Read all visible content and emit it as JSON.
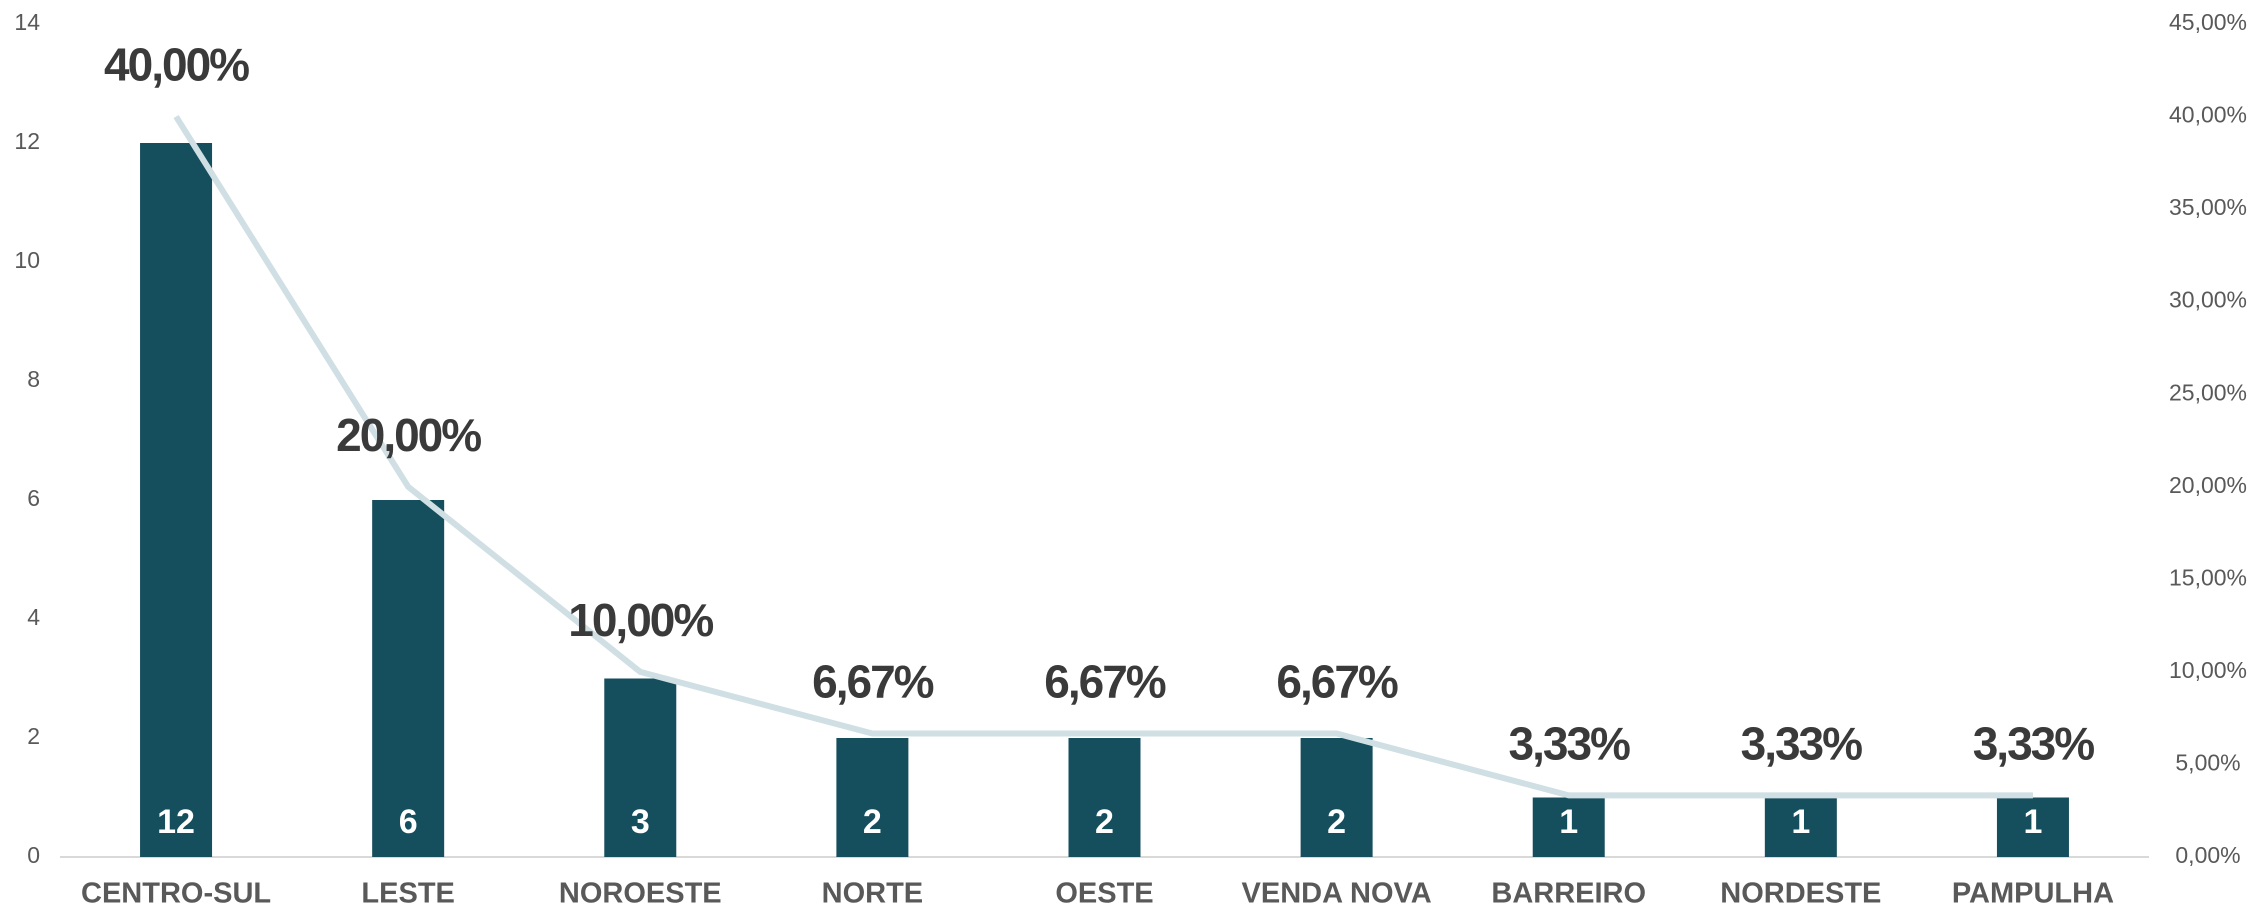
{
  "chart_data": {
    "type": "bar",
    "categories": [
      "CENTRO-SUL",
      "LESTE",
      "NOROESTE",
      "NORTE",
      "OESTE",
      "VENDA NOVA",
      "BARREIRO",
      "NORDESTE",
      "PAMPULHA"
    ],
    "series": [
      {
        "color": "#154e5c",
        "values": [
          12,
          6,
          3,
          2,
          2,
          2,
          1,
          1,
          1
        ]
      },
      {
        "type": "line",
        "axis": "y2",
        "color": "#cfdfe3",
        "values": [
          40,
          20,
          10,
          6.67,
          6.67,
          6.67,
          3.33,
          3.33,
          3.33
        ],
        "value_labels": [
          "40,00%",
          "20,00%",
          "10,00%",
          "6,67%",
          "6,67%",
          "6,67%",
          "3,33%",
          "3,33%",
          "3,33%"
        ]
      }
    ],
    "ylim": [
      0,
      14
    ],
    "yticks": [
      0,
      2,
      4,
      6,
      8,
      10,
      12,
      14
    ],
    "y2lim": [
      0,
      45
    ],
    "y2ticks": [
      {
        "value": 0,
        "label": "0,00%"
      },
      {
        "value": 5,
        "label": "5,00%"
      },
      {
        "value": 10,
        "label": "10,00%"
      },
      {
        "value": 15,
        "label": "15,00%"
      },
      {
        "value": 20,
        "label": "20,00%"
      },
      {
        "value": 25,
        "label": "25,00%"
      },
      {
        "value": 30,
        "label": "30,00%"
      },
      {
        "value": 35,
        "label": "35,00%"
      },
      {
        "value": 40,
        "label": "40,00%"
      },
      {
        "value": 45,
        "label": "45,00%"
      }
    ]
  }
}
